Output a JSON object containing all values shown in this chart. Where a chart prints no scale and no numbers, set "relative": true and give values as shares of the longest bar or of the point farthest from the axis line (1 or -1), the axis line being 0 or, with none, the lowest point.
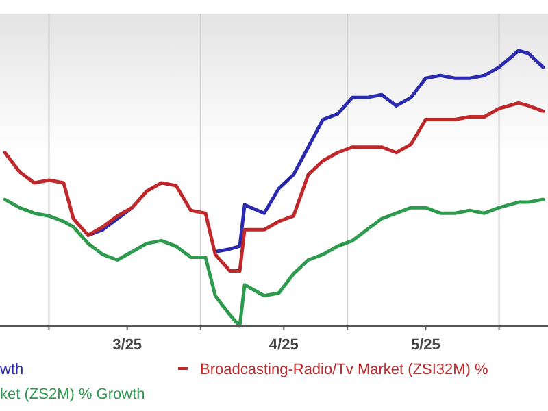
{
  "chart_data": {
    "type": "line",
    "relative": true,
    "x": [
      "2025-02-20",
      "2025-02-23",
      "2025-02-26",
      "2025-03-01",
      "2025-03-04",
      "2025-03-06",
      "2025-03-09",
      "2025-03-12",
      "2025-03-15",
      "2025-03-18",
      "2025-03-21",
      "2025-03-24",
      "2025-03-27",
      "2025-03-30",
      "2025-04-02",
      "2025-04-04",
      "2025-04-07",
      "2025-04-09",
      "2025-04-10",
      "2025-04-14",
      "2025-04-17",
      "2025-04-20",
      "2025-04-23",
      "2025-04-26",
      "2025-04-29",
      "2025-05-02",
      "2025-05-05",
      "2025-05-08",
      "2025-05-11",
      "2025-05-14",
      "2025-05-17",
      "2025-05-20",
      "2025-05-23",
      "2025-05-26",
      "2025-05-29",
      "2025-06-01",
      "2025-06-05",
      "2025-06-07",
      "2025-06-10"
    ],
    "xlim": [
      "2025-02-19",
      "2025-06-11"
    ],
    "xticks": [
      {
        "value": "2025-03-01",
        "label": null
      },
      {
        "value": "2025-03-17",
        "label": "3/25"
      },
      {
        "value": "2025-04-01",
        "label": null
      },
      {
        "value": "2025-04-18",
        "label": "4/25"
      },
      {
        "value": "2025-05-01",
        "label": null
      },
      {
        "value": "2025-05-17",
        "label": "5/25"
      },
      {
        "value": "2025-06-01",
        "label": null
      }
    ],
    "grid": "x",
    "legend": "bottom",
    "line_style": "solid",
    "series": [
      {
        "name": "wth",
        "color": "#2b2bb0",
        "values": [
          null,
          null,
          null,
          null,
          null,
          null,
          0.33,
          0.35,
          0.39,
          0.43,
          null,
          null,
          null,
          null,
          null,
          0.27,
          0.28,
          0.29,
          0.44,
          0.41,
          0.5,
          0.55,
          0.65,
          0.75,
          0.77,
          0.83,
          0.83,
          0.84,
          0.8,
          0.83,
          0.9,
          0.91,
          0.9,
          0.9,
          0.91,
          0.94,
          1,
          0.99,
          0.94
        ]
      },
      {
        "name": "Broadcasting-Radio/Tv Market (ZSI32M) %",
        "color": "#c0292b",
        "values": [
          0.63,
          0.56,
          0.52,
          0.53,
          0.52,
          0.39,
          0.33,
          0.36,
          0.4,
          0.43,
          0.49,
          0.52,
          0.51,
          0.42,
          0.41,
          0.26,
          0.2,
          0.2,
          0.35,
          0.35,
          0.38,
          0.4,
          0.55,
          0.6,
          0.63,
          0.65,
          0.65,
          0.65,
          0.63,
          0.66,
          0.75,
          0.75,
          0.75,
          0.76,
          0.76,
          0.79,
          0.81,
          0.8,
          0.78
        ]
      },
      {
        "name": "ket (ZS2M) % Growth",
        "color": "#2e9a4e",
        "values": [
          0.46,
          0.43,
          0.41,
          0.4,
          0.38,
          0.36,
          0.3,
          0.26,
          0.24,
          0.27,
          0.3,
          0.31,
          0.29,
          0.25,
          0.25,
          0.11,
          0.04,
          0.0,
          0.15,
          0.11,
          0.12,
          0.19,
          0.24,
          0.26,
          0.29,
          0.31,
          0.35,
          0.39,
          0.41,
          0.43,
          0.43,
          0.41,
          0.41,
          0.42,
          0.41,
          0.43,
          0.45,
          0.45,
          0.46
        ]
      }
    ]
  }
}
